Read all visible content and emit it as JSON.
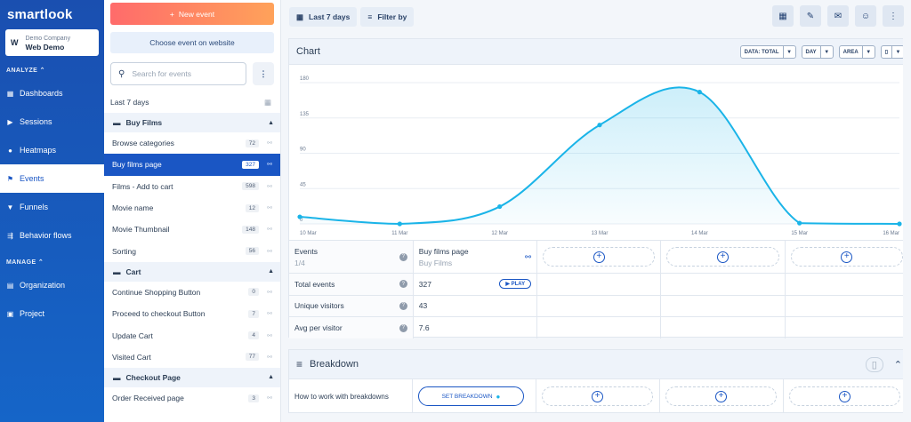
{
  "sidebar": {
    "logo": "smartlook",
    "company_initial": "W",
    "company_name": "Demo Company",
    "project_name": "Web Demo",
    "analyze_label": "ANALYZE",
    "manage_label": "MANAGE",
    "items": [
      {
        "label": "Dashboards",
        "icon": "grid-icon"
      },
      {
        "label": "Sessions",
        "icon": "play-icon"
      },
      {
        "label": "Heatmaps",
        "icon": "flame-icon"
      },
      {
        "label": "Events",
        "icon": "flag-icon",
        "active": true
      },
      {
        "label": "Funnels",
        "icon": "funnel-icon"
      },
      {
        "label": "Behavior flows",
        "icon": "flow-icon"
      }
    ],
    "manage_items": [
      {
        "label": "Organization",
        "icon": "building-icon"
      },
      {
        "label": "Project",
        "icon": "project-icon"
      }
    ]
  },
  "events_panel": {
    "new_event": "New event",
    "choose_event": "Choose event on website",
    "search_placeholder": "Search for events",
    "range_label": "Last 7 days",
    "groups": [
      {
        "name": "Buy Films",
        "events": [
          {
            "label": "Browse categories",
            "count": "72"
          },
          {
            "label": "Buy films page",
            "count": "327",
            "selected": true
          },
          {
            "label": "Films - Add to cart",
            "count": "598"
          },
          {
            "label": "Movie name",
            "count": "12"
          },
          {
            "label": "Movie Thumbnail",
            "count": "148"
          },
          {
            "label": "Sorting",
            "count": "56"
          }
        ]
      },
      {
        "name": "Cart",
        "events": [
          {
            "label": "Continue Shopping Button",
            "count": "0"
          },
          {
            "label": "Proceed to checkout Button",
            "count": "7"
          },
          {
            "label": "Update Cart",
            "count": "4"
          },
          {
            "label": "Visited Cart",
            "count": "77"
          }
        ]
      },
      {
        "name": "Checkout Page",
        "events": [
          {
            "label": "Order Received page",
            "count": "3"
          }
        ]
      }
    ]
  },
  "toolbar": {
    "date_range": "Last 7 days",
    "filter": "Filter by"
  },
  "chart_card": {
    "title": "Chart",
    "chip_data": "DATA: TOTAL",
    "chip_day": "DAY",
    "chip_area": "AREA"
  },
  "chart_data": {
    "type": "area",
    "x": [
      "10 Mar",
      "11 Mar",
      "12 Mar",
      "13 Mar",
      "14 Mar",
      "15 Mar",
      "16 Mar"
    ],
    "values": [
      9,
      0,
      22,
      126,
      168,
      1,
      0
    ],
    "yticks": [
      0,
      45,
      90,
      135,
      180
    ],
    "ylim": [
      0,
      180
    ],
    "color": "#1ab4e8"
  },
  "stats": {
    "events_label": "Events",
    "events_sub": "1/4",
    "event_name": "Buy films page",
    "event_group": "Buy Films",
    "rows": [
      {
        "label": "Total events",
        "value": "327"
      },
      {
        "label": "Unique visitors",
        "value": "43"
      },
      {
        "label": "Avg per visitor",
        "value": "7.6"
      }
    ],
    "play_label": "PLAY"
  },
  "breakdown": {
    "title": "Breakdown",
    "help": "How to work with breakdowns",
    "set_label": "SET BREAKDOWN"
  }
}
